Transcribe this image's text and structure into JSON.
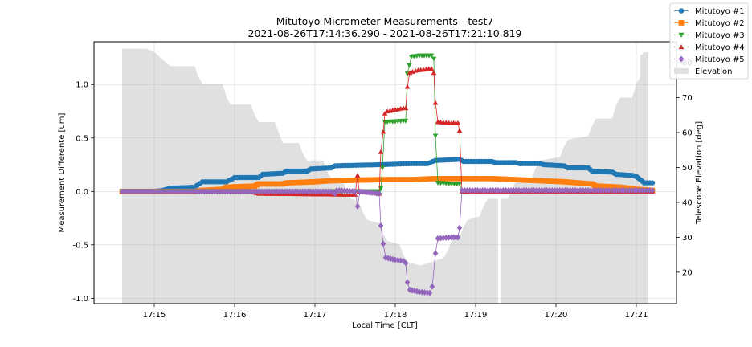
{
  "chart_data": {
    "type": "line",
    "title": "Mitutoyo Micrometer Measurements - test7",
    "subtitle": "2021-08-26T17:14:36.290 - 2021-08-26T17:21:10.819",
    "xlabel": "Local Time [CLT]",
    "ylabel": "Measurement Differente [um]",
    "y2label": "Telescope Elevation [deg]",
    "x_ticks": [
      "17:15",
      "17:16",
      "17:17",
      "17:18",
      "17:19",
      "17:20",
      "17:21"
    ],
    "x_tick_minutes": [
      15,
      16,
      17,
      18,
      19,
      20,
      21
    ],
    "xlim_minutes": [
      14.25,
      21.5
    ],
    "ylim": [
      -1.05,
      1.4
    ],
    "y_ticks": [
      -1.0,
      -0.5,
      0.0,
      0.5,
      1.0
    ],
    "y2lim": [
      11,
      86
    ],
    "y2_ticks": [
      20,
      30,
      40,
      50,
      60,
      70,
      80
    ],
    "grid": true,
    "legend_position": "top-right",
    "series": [
      {
        "name": "Mitutoyo #1",
        "color": "#1f77b4",
        "marker": "circle",
        "step": false,
        "points": [
          [
            14.6,
            0
          ],
          [
            15.0,
            0
          ],
          [
            15.1,
            0.01
          ],
          [
            15.2,
            0.03
          ],
          [
            15.5,
            0.04
          ],
          [
            15.6,
            0.09
          ],
          [
            15.9,
            0.09
          ],
          [
            16.0,
            0.13
          ],
          [
            16.3,
            0.13
          ],
          [
            16.35,
            0.16
          ],
          [
            16.6,
            0.17
          ],
          [
            16.65,
            0.19
          ],
          [
            16.9,
            0.19
          ],
          [
            16.95,
            0.21
          ],
          [
            17.2,
            0.22
          ],
          [
            17.25,
            0.24
          ],
          [
            17.8,
            0.25
          ],
          [
            18.2,
            0.26
          ],
          [
            18.4,
            0.26
          ],
          [
            18.5,
            0.29
          ],
          [
            18.8,
            0.3
          ],
          [
            18.85,
            0.28
          ],
          [
            19.2,
            0.28
          ],
          [
            19.25,
            0.27
          ],
          [
            19.5,
            0.27
          ],
          [
            19.55,
            0.26
          ],
          [
            19.8,
            0.26
          ],
          [
            19.85,
            0.25
          ],
          [
            20.1,
            0.24
          ],
          [
            20.15,
            0.22
          ],
          [
            20.4,
            0.22
          ],
          [
            20.45,
            0.19
          ],
          [
            20.7,
            0.18
          ],
          [
            20.75,
            0.16
          ],
          [
            20.95,
            0.15
          ],
          [
            21.0,
            0.14
          ],
          [
            21.05,
            0.11
          ],
          [
            21.1,
            0.08
          ],
          [
            21.2,
            0.08
          ]
        ]
      },
      {
        "name": "Mitutoyo #2",
        "color": "#ff7f0e",
        "marker": "square",
        "step": false,
        "points": [
          [
            14.6,
            0
          ],
          [
            15.5,
            0.0
          ],
          [
            15.6,
            0.01
          ],
          [
            15.85,
            0.02
          ],
          [
            15.9,
            0.04
          ],
          [
            16.25,
            0.05
          ],
          [
            16.3,
            0.07
          ],
          [
            16.6,
            0.07
          ],
          [
            16.65,
            0.08
          ],
          [
            17.0,
            0.09
          ],
          [
            17.2,
            0.1
          ],
          [
            17.8,
            0.11
          ],
          [
            18.2,
            0.11
          ],
          [
            18.5,
            0.12
          ],
          [
            18.9,
            0.12
          ],
          [
            19.2,
            0.12
          ],
          [
            19.5,
            0.11
          ],
          [
            19.8,
            0.1
          ],
          [
            20.1,
            0.09
          ],
          [
            20.45,
            0.07
          ],
          [
            20.5,
            0.05
          ],
          [
            20.8,
            0.04
          ],
          [
            21.0,
            0.02
          ],
          [
            21.2,
            0.01
          ]
        ]
      },
      {
        "name": "Mitutoyo #3",
        "color": "#2ca02c",
        "marker": "triangle-down",
        "step": false,
        "points": [
          [
            14.6,
            0
          ],
          [
            17.5,
            0
          ],
          [
            17.8,
            0.0
          ],
          [
            17.82,
            0.03
          ],
          [
            17.84,
            0.22
          ],
          [
            17.87,
            0.65
          ],
          [
            17.9,
            0.65
          ],
          [
            18.1,
            0.66
          ],
          [
            18.13,
            0.66
          ],
          [
            18.15,
            1.1
          ],
          [
            18.2,
            1.26
          ],
          [
            18.3,
            1.27
          ],
          [
            18.45,
            1.27
          ],
          [
            18.48,
            1.24
          ],
          [
            18.5,
            0.52
          ],
          [
            18.53,
            0.08
          ],
          [
            18.7,
            0.07
          ],
          [
            18.8,
            0.07
          ],
          [
            18.83,
            0.0
          ],
          [
            21.2,
            0.0
          ]
        ]
      },
      {
        "name": "Mitutoyo #4",
        "color": "#d62728",
        "marker": "triangle-up",
        "step": false,
        "points": [
          [
            14.6,
            0
          ],
          [
            16.2,
            0.0
          ],
          [
            16.3,
            -0.02
          ],
          [
            17.5,
            -0.03
          ],
          [
            17.53,
            0.15
          ],
          [
            17.55,
            0.0
          ],
          [
            17.8,
            -0.02
          ],
          [
            17.82,
            0.37
          ],
          [
            17.85,
            0.56
          ],
          [
            17.87,
            0.73
          ],
          [
            17.9,
            0.75
          ],
          [
            18.1,
            0.78
          ],
          [
            18.13,
            0.78
          ],
          [
            18.15,
            0.98
          ],
          [
            18.18,
            1.11
          ],
          [
            18.25,
            1.13
          ],
          [
            18.45,
            1.15
          ],
          [
            18.48,
            1.11
          ],
          [
            18.5,
            0.83
          ],
          [
            18.53,
            0.65
          ],
          [
            18.7,
            0.64
          ],
          [
            18.78,
            0.64
          ],
          [
            18.8,
            0.57
          ],
          [
            18.83,
            0.0
          ],
          [
            21.2,
            0.0
          ]
        ]
      },
      {
        "name": "Mitutoyo #5",
        "color": "#9467bd",
        "marker": "diamond",
        "step": false,
        "points": [
          [
            14.6,
            0
          ],
          [
            17.2,
            0.0
          ],
          [
            17.25,
            -0.02
          ],
          [
            17.27,
            0.01
          ],
          [
            17.5,
            0.0
          ],
          [
            17.53,
            -0.14
          ],
          [
            17.56,
            0.0
          ],
          [
            17.8,
            -0.02
          ],
          [
            17.82,
            -0.32
          ],
          [
            17.85,
            -0.49
          ],
          [
            17.88,
            -0.62
          ],
          [
            18.0,
            -0.64
          ],
          [
            18.1,
            -0.65
          ],
          [
            18.13,
            -0.67
          ],
          [
            18.15,
            -0.85
          ],
          [
            18.18,
            -0.92
          ],
          [
            18.3,
            -0.94
          ],
          [
            18.43,
            -0.95
          ],
          [
            18.46,
            -0.89
          ],
          [
            18.5,
            -0.58
          ],
          [
            18.53,
            -0.44
          ],
          [
            18.7,
            -0.43
          ],
          [
            18.78,
            -0.43
          ],
          [
            18.8,
            -0.34
          ],
          [
            18.83,
            0.01
          ],
          [
            21.2,
            0.01
          ]
        ]
      },
      {
        "name": "Elevation",
        "color": "#e0e0e0",
        "area": true,
        "axis": "y2",
        "points": [
          [
            14.6,
            11
          ],
          [
            14.6,
            84
          ],
          [
            14.9,
            84
          ],
          [
            15.0,
            83
          ],
          [
            15.1,
            81
          ],
          [
            15.2,
            79
          ],
          [
            15.5,
            79
          ],
          [
            15.55,
            76
          ],
          [
            15.6,
            74
          ],
          [
            15.85,
            74
          ],
          [
            15.9,
            70
          ],
          [
            15.95,
            68
          ],
          [
            16.2,
            68
          ],
          [
            16.25,
            65
          ],
          [
            16.3,
            63
          ],
          [
            16.5,
            63
          ],
          [
            16.55,
            60
          ],
          [
            16.6,
            57
          ],
          [
            16.8,
            57
          ],
          [
            16.85,
            54
          ],
          [
            16.9,
            52
          ],
          [
            17.1,
            52
          ],
          [
            17.15,
            49
          ],
          [
            17.2,
            47
          ],
          [
            17.35,
            46
          ],
          [
            17.4,
            43
          ],
          [
            17.45,
            41
          ],
          [
            17.55,
            40
          ],
          [
            17.6,
            37
          ],
          [
            17.65,
            35
          ],
          [
            17.8,
            34
          ],
          [
            17.85,
            31
          ],
          [
            17.9,
            29
          ],
          [
            18.05,
            28
          ],
          [
            18.1,
            25
          ],
          [
            18.15,
            23
          ],
          [
            18.3,
            22
          ],
          [
            18.32,
            22
          ],
          [
            18.6,
            24
          ],
          [
            18.65,
            26
          ],
          [
            18.7,
            29
          ],
          [
            18.8,
            30
          ],
          [
            18.85,
            33
          ],
          [
            18.9,
            35
          ],
          [
            19.05,
            36
          ],
          [
            19.1,
            39
          ],
          [
            19.15,
            41
          ],
          [
            19.28,
            41
          ],
          [
            19.28,
            11
          ],
          [
            19.32,
            11
          ],
          [
            19.32,
            41
          ],
          [
            19.4,
            41
          ],
          [
            19.45,
            44
          ],
          [
            19.5,
            46
          ],
          [
            19.7,
            47
          ],
          [
            19.75,
            50
          ],
          [
            19.8,
            52
          ],
          [
            20.05,
            53
          ],
          [
            20.1,
            56
          ],
          [
            20.15,
            58
          ],
          [
            20.4,
            59
          ],
          [
            20.45,
            62
          ],
          [
            20.5,
            64
          ],
          [
            20.7,
            64
          ],
          [
            20.75,
            68
          ],
          [
            20.8,
            70
          ],
          [
            20.95,
            70
          ],
          [
            21.0,
            74
          ],
          [
            21.05,
            76
          ],
          [
            21.05,
            82
          ],
          [
            21.1,
            83
          ],
          [
            21.15,
            83
          ],
          [
            21.15,
            11
          ]
        ]
      }
    ]
  }
}
